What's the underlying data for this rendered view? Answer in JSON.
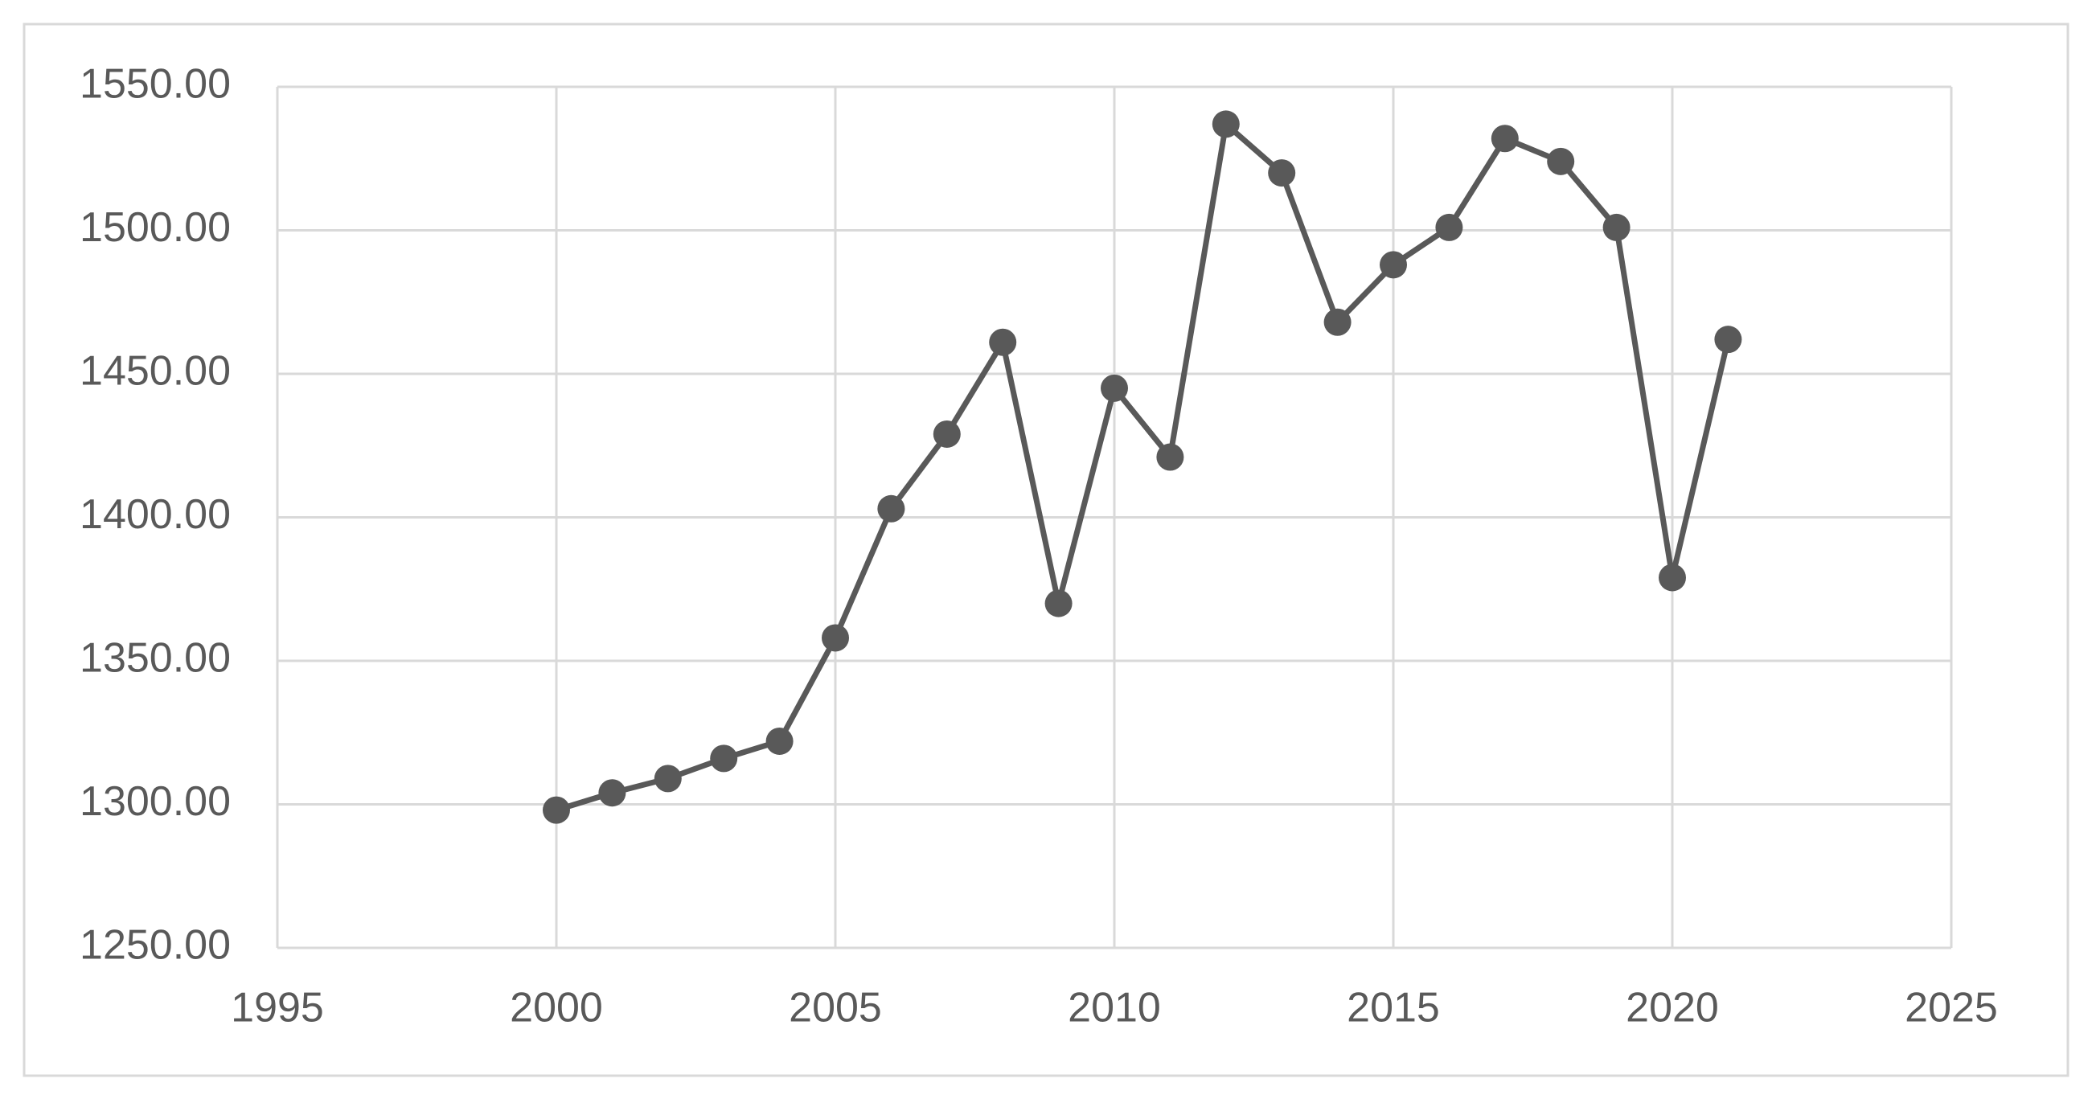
{
  "chart_data": {
    "type": "line",
    "x": [
      2000,
      2001,
      2002,
      2003,
      2004,
      2005,
      2006,
      2007,
      2008,
      2009,
      2010,
      2011,
      2012,
      2013,
      2014,
      2015,
      2016,
      2017,
      2018,
      2019,
      2020,
      2021
    ],
    "values": [
      1298,
      1304,
      1309,
      1316,
      1322,
      1358,
      1403,
      1429,
      1461,
      1370,
      1445,
      1421,
      1537,
      1520,
      1468,
      1488,
      1501,
      1532,
      1524,
      1501,
      1379,
      1462
    ],
    "color": "#595959",
    "markers": true,
    "xlim": [
      1995,
      2025
    ],
    "xticks": [
      1995,
      2000,
      2005,
      2010,
      2015,
      2020,
      2025
    ],
    "ylim": [
      1250,
      1550
    ],
    "yticks": [
      {
        "value": 1250,
        "label": "1250.00"
      },
      {
        "value": 1300,
        "label": "1300.00"
      },
      {
        "value": 1350,
        "label": "1350.00"
      },
      {
        "value": 1400,
        "label": "1400.00"
      },
      {
        "value": 1450,
        "label": "1450.00"
      },
      {
        "value": 1500,
        "label": "1500.00"
      },
      {
        "value": 1550,
        "label": "1550.00"
      }
    ],
    "grid": true
  }
}
